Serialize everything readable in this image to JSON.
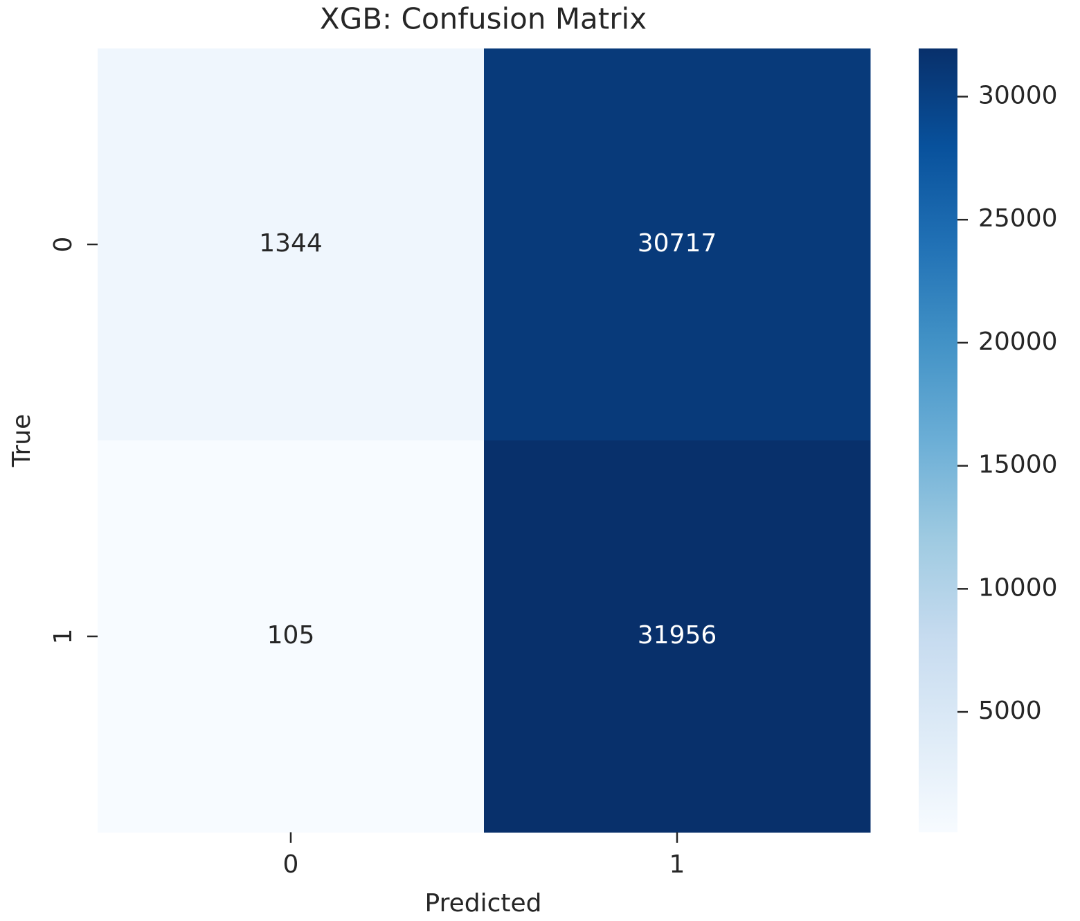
{
  "chart_data": {
    "type": "heatmap",
    "title": "XGB: Confusion Matrix",
    "xlabel": "Predicted",
    "ylabel": "True",
    "x_categories": [
      "0",
      "1"
    ],
    "y_categories": [
      "0",
      "1"
    ],
    "values": [
      [
        1344,
        30717
      ],
      [
        105,
        31956
      ]
    ],
    "colormap": "Blues",
    "clim": [
      105,
      31956
    ],
    "cticks": [
      5000,
      10000,
      15000,
      20000,
      25000,
      30000
    ]
  }
}
